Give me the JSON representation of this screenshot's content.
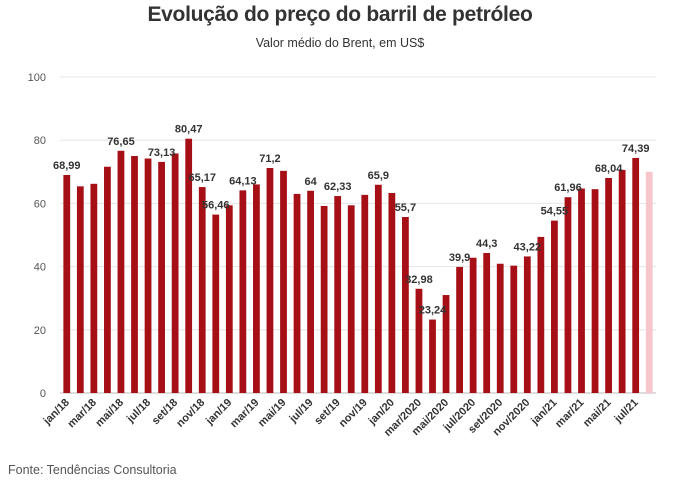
{
  "chart_data": {
    "type": "bar",
    "title": "Evolução do preço do barril de petróleo",
    "subtitle": "Valor médio do Brent, em US$",
    "source": "Fonte: Tendências Consultoria",
    "ylim": [
      0,
      100
    ],
    "yticks": [
      0,
      20,
      40,
      60,
      80,
      100
    ],
    "grid": true,
    "colors": {
      "bar": "#a50f15",
      "highlight": "#f7c5cc"
    },
    "values": [
      68.99,
      65.4,
      66.2,
      71.6,
      76.65,
      75.0,
      74.2,
      73.13,
      75.8,
      80.47,
      65.17,
      56.46,
      59.4,
      64.13,
      66.0,
      71.2,
      70.3,
      63.0,
      64,
      59.2,
      62.33,
      59.4,
      62.7,
      65.9,
      63.3,
      55.7,
      32.98,
      23.24,
      31.0,
      39.9,
      42.8,
      44.3,
      40.9,
      40.3,
      43.22,
      49.4,
      54.55,
      61.96,
      64.7,
      64.5,
      68.04,
      70.6,
      74.39,
      70.0
    ],
    "highlight_last": true,
    "data_labels": [
      {
        "index": 0,
        "text": "68,99"
      },
      {
        "index": 4,
        "text": "76,65"
      },
      {
        "index": 7,
        "text": "73,13"
      },
      {
        "index": 9,
        "text": "80,47"
      },
      {
        "index": 10,
        "text": "65,17"
      },
      {
        "index": 11,
        "text": "56,46"
      },
      {
        "index": 13,
        "text": "64,13"
      },
      {
        "index": 15,
        "text": "71,2"
      },
      {
        "index": 18,
        "text": "64"
      },
      {
        "index": 20,
        "text": "62,33"
      },
      {
        "index": 23,
        "text": "65,9"
      },
      {
        "index": 25,
        "text": "55,7"
      },
      {
        "index": 26,
        "text": "32,98"
      },
      {
        "index": 27,
        "text": "23,24"
      },
      {
        "index": 29,
        "text": "39,9"
      },
      {
        "index": 31,
        "text": "44,3"
      },
      {
        "index": 34,
        "text": "43,22"
      },
      {
        "index": 36,
        "text": "54,55"
      },
      {
        "index": 37,
        "text": "61,96"
      },
      {
        "index": 40,
        "text": "68,04"
      },
      {
        "index": 42,
        "text": "74,39"
      }
    ],
    "x_tick_labels": [
      {
        "index": 0,
        "text": "jan/18"
      },
      {
        "index": 2,
        "text": "mar/18"
      },
      {
        "index": 4,
        "text": "mai/18"
      },
      {
        "index": 6,
        "text": "jul/18"
      },
      {
        "index": 8,
        "text": "set/18"
      },
      {
        "index": 10,
        "text": "nov/18"
      },
      {
        "index": 12,
        "text": "jan/19"
      },
      {
        "index": 14,
        "text": "mar/19"
      },
      {
        "index": 16,
        "text": "mai/19"
      },
      {
        "index": 18,
        "text": "jul/19"
      },
      {
        "index": 20,
        "text": "set/19"
      },
      {
        "index": 22,
        "text": "nov/19"
      },
      {
        "index": 24,
        "text": "jan/20"
      },
      {
        "index": 26,
        "text": "mar/2020"
      },
      {
        "index": 28,
        "text": "mai/2020"
      },
      {
        "index": 30,
        "text": "jul/2020"
      },
      {
        "index": 32,
        "text": "set/2020"
      },
      {
        "index": 34,
        "text": "nov/2020"
      },
      {
        "index": 36,
        "text": "jan/21"
      },
      {
        "index": 38,
        "text": "mar/21"
      },
      {
        "index": 40,
        "text": "mai/21"
      },
      {
        "index": 42,
        "text": "jul/21"
      }
    ]
  }
}
